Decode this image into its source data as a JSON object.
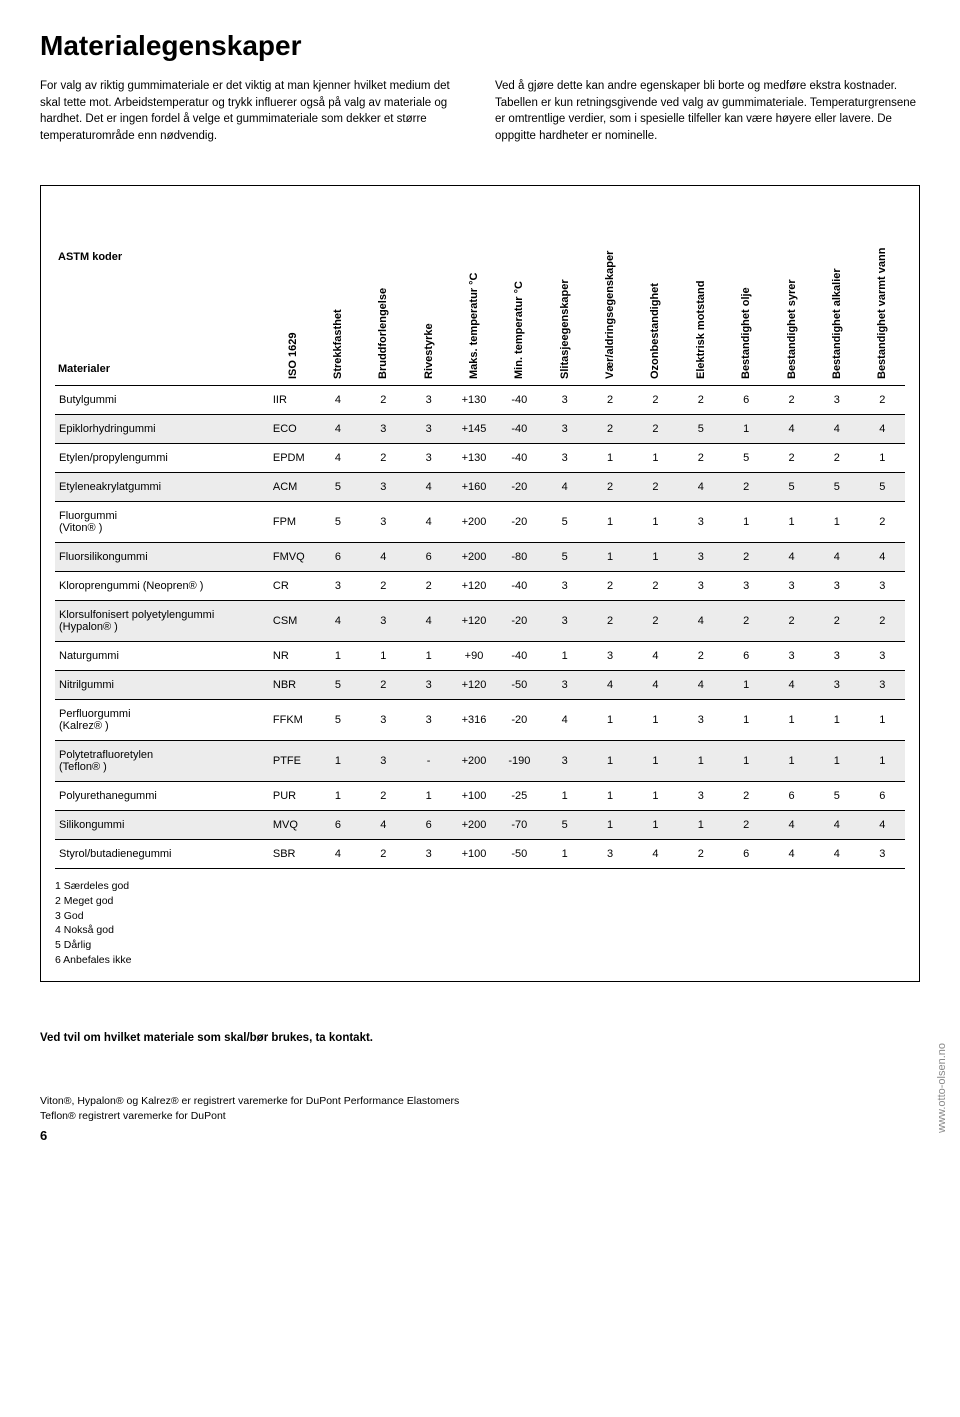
{
  "title": "Materialegenskaper",
  "intro_col1": "For valg av riktig gummimateriale er det viktig at man kjenner hvilket medium det skal tette mot.\nArbeidstemperatur og trykk influerer også på valg av materiale og hardhet. Det er ingen fordel å velge et gummimateriale som dekker et større temperaturområde enn nødvendig.",
  "intro_col2": "Ved å gjøre dette kan andre egenskaper bli borte og medføre ekstra kostnader. Tabellen er kun retningsgivende ved valg av gummimateriale. Temperaturgrensene er omtrentlige verdier, som i spesielle tilfeller kan være høyere eller lavere. De oppgitte hardheter er nominelle.",
  "table": {
    "corner_top": "ASTM koder",
    "corner_bottom": "Materialer",
    "columns": [
      "ISO 1629",
      "Strekkfasthet",
      "Bruddforlengelse",
      "Rivestyrke",
      "Maks. temperatur °C",
      "Min. temperatur °C",
      "Slitasjeegenskaper",
      "Vær/aldringsegenskaper",
      "Ozonbestandighet",
      "Elektrisk motstand",
      "Bestandighet olje",
      "Bestandighet syrer",
      "Bestandighet alkalier",
      "Bestandighet varmt vann"
    ],
    "rows": [
      {
        "name": "Butylgummi",
        "iso": "IIR",
        "v": [
          "4",
          "2",
          "3",
          "+130",
          "-40",
          "3",
          "2",
          "2",
          "2",
          "6",
          "2",
          "3",
          "2"
        ],
        "shade": false
      },
      {
        "name": "Epiklorhydringummi",
        "iso": "ECO",
        "v": [
          "4",
          "3",
          "3",
          "+145",
          "-40",
          "3",
          "2",
          "2",
          "5",
          "1",
          "4",
          "4",
          "4"
        ],
        "shade": true
      },
      {
        "name": "Etylen/propylengummi",
        "iso": "EPDM",
        "v": [
          "4",
          "2",
          "3",
          "+130",
          "-40",
          "3",
          "1",
          "1",
          "2",
          "5",
          "2",
          "2",
          "1"
        ],
        "shade": false
      },
      {
        "name": "Etyleneakrylatgummi",
        "iso": "ACM",
        "v": [
          "5",
          "3",
          "4",
          "+160",
          "-20",
          "4",
          "2",
          "2",
          "4",
          "2",
          "5",
          "5",
          "5"
        ],
        "shade": true
      },
      {
        "name": "Fluorgummi\n(Viton® )",
        "iso": "FPM",
        "v": [
          "5",
          "3",
          "4",
          "+200",
          "-20",
          "5",
          "1",
          "1",
          "3",
          "1",
          "1",
          "1",
          "2"
        ],
        "shade": false
      },
      {
        "name": "Fluorsilikongummi",
        "iso": "FMVQ",
        "v": [
          "6",
          "4",
          "6",
          "+200",
          "-80",
          "5",
          "1",
          "1",
          "3",
          "2",
          "4",
          "4",
          "4"
        ],
        "shade": true
      },
      {
        "name": "Kloroprengummi (Neopren® )",
        "iso": "CR",
        "v": [
          "3",
          "2",
          "2",
          "+120",
          "-40",
          "3",
          "2",
          "2",
          "3",
          "3",
          "3",
          "3",
          "3"
        ],
        "shade": false
      },
      {
        "name": "Klorsulfonisert polyetylengummi\n(Hypalon® )",
        "iso": "CSM",
        "v": [
          "4",
          "3",
          "4",
          "+120",
          "-20",
          "3",
          "2",
          "2",
          "4",
          "2",
          "2",
          "2",
          "2"
        ],
        "shade": true
      },
      {
        "name": "Naturgummi",
        "iso": "NR",
        "v": [
          "1",
          "1",
          "1",
          "+90",
          "-40",
          "1",
          "3",
          "4",
          "2",
          "6",
          "3",
          "3",
          "3"
        ],
        "shade": false
      },
      {
        "name": "Nitrilgummi",
        "iso": "NBR",
        "v": [
          "5",
          "2",
          "3",
          "+120",
          "-50",
          "3",
          "4",
          "4",
          "4",
          "1",
          "4",
          "3",
          "3"
        ],
        "shade": true
      },
      {
        "name": "Perfluorgummi\n(Kalrez® )",
        "iso": "FFKM",
        "v": [
          "5",
          "3",
          "3",
          "+316",
          "-20",
          "4",
          "1",
          "1",
          "3",
          "1",
          "1",
          "1",
          "1"
        ],
        "shade": false
      },
      {
        "name": "Polytetrafluoretylen\n(Teflon® )",
        "iso": "PTFE",
        "v": [
          "1",
          "3",
          "-",
          "+200",
          "-190",
          "3",
          "1",
          "1",
          "1",
          "1",
          "1",
          "1",
          "1"
        ],
        "shade": true
      },
      {
        "name": "Polyurethanegummi",
        "iso": "PUR",
        "v": [
          "1",
          "2",
          "1",
          "+100",
          "-25",
          "1",
          "1",
          "1",
          "3",
          "2",
          "6",
          "5",
          "6"
        ],
        "shade": false
      },
      {
        "name": "Silikongummi",
        "iso": "MVQ",
        "v": [
          "6",
          "4",
          "6",
          "+200",
          "-70",
          "5",
          "1",
          "1",
          "1",
          "2",
          "4",
          "4",
          "4"
        ],
        "shade": true
      },
      {
        "name": "Styrol/butadienegummi",
        "iso": "SBR",
        "v": [
          "4",
          "2",
          "3",
          "+100",
          "-50",
          "1",
          "3",
          "4",
          "2",
          "6",
          "4",
          "4",
          "3"
        ],
        "shade": false
      }
    ]
  },
  "legend": [
    "1 Særdeles god",
    "2 Meget god",
    "3 God",
    "4 Nokså god",
    "5 Dårlig",
    "6 Anbefales ikke"
  ],
  "side_url": "www.otto-olsen.no",
  "footer_note": "Ved tvil om hvilket materiale som skal/bør brukes, ta kontakt.",
  "trademark1": "Viton®, Hypalon® og Kalrez® er registrert varemerke for DuPont Performance Elastomers",
  "trademark2": "Teflon® registrert varemerke for DuPont",
  "page_number": "6"
}
